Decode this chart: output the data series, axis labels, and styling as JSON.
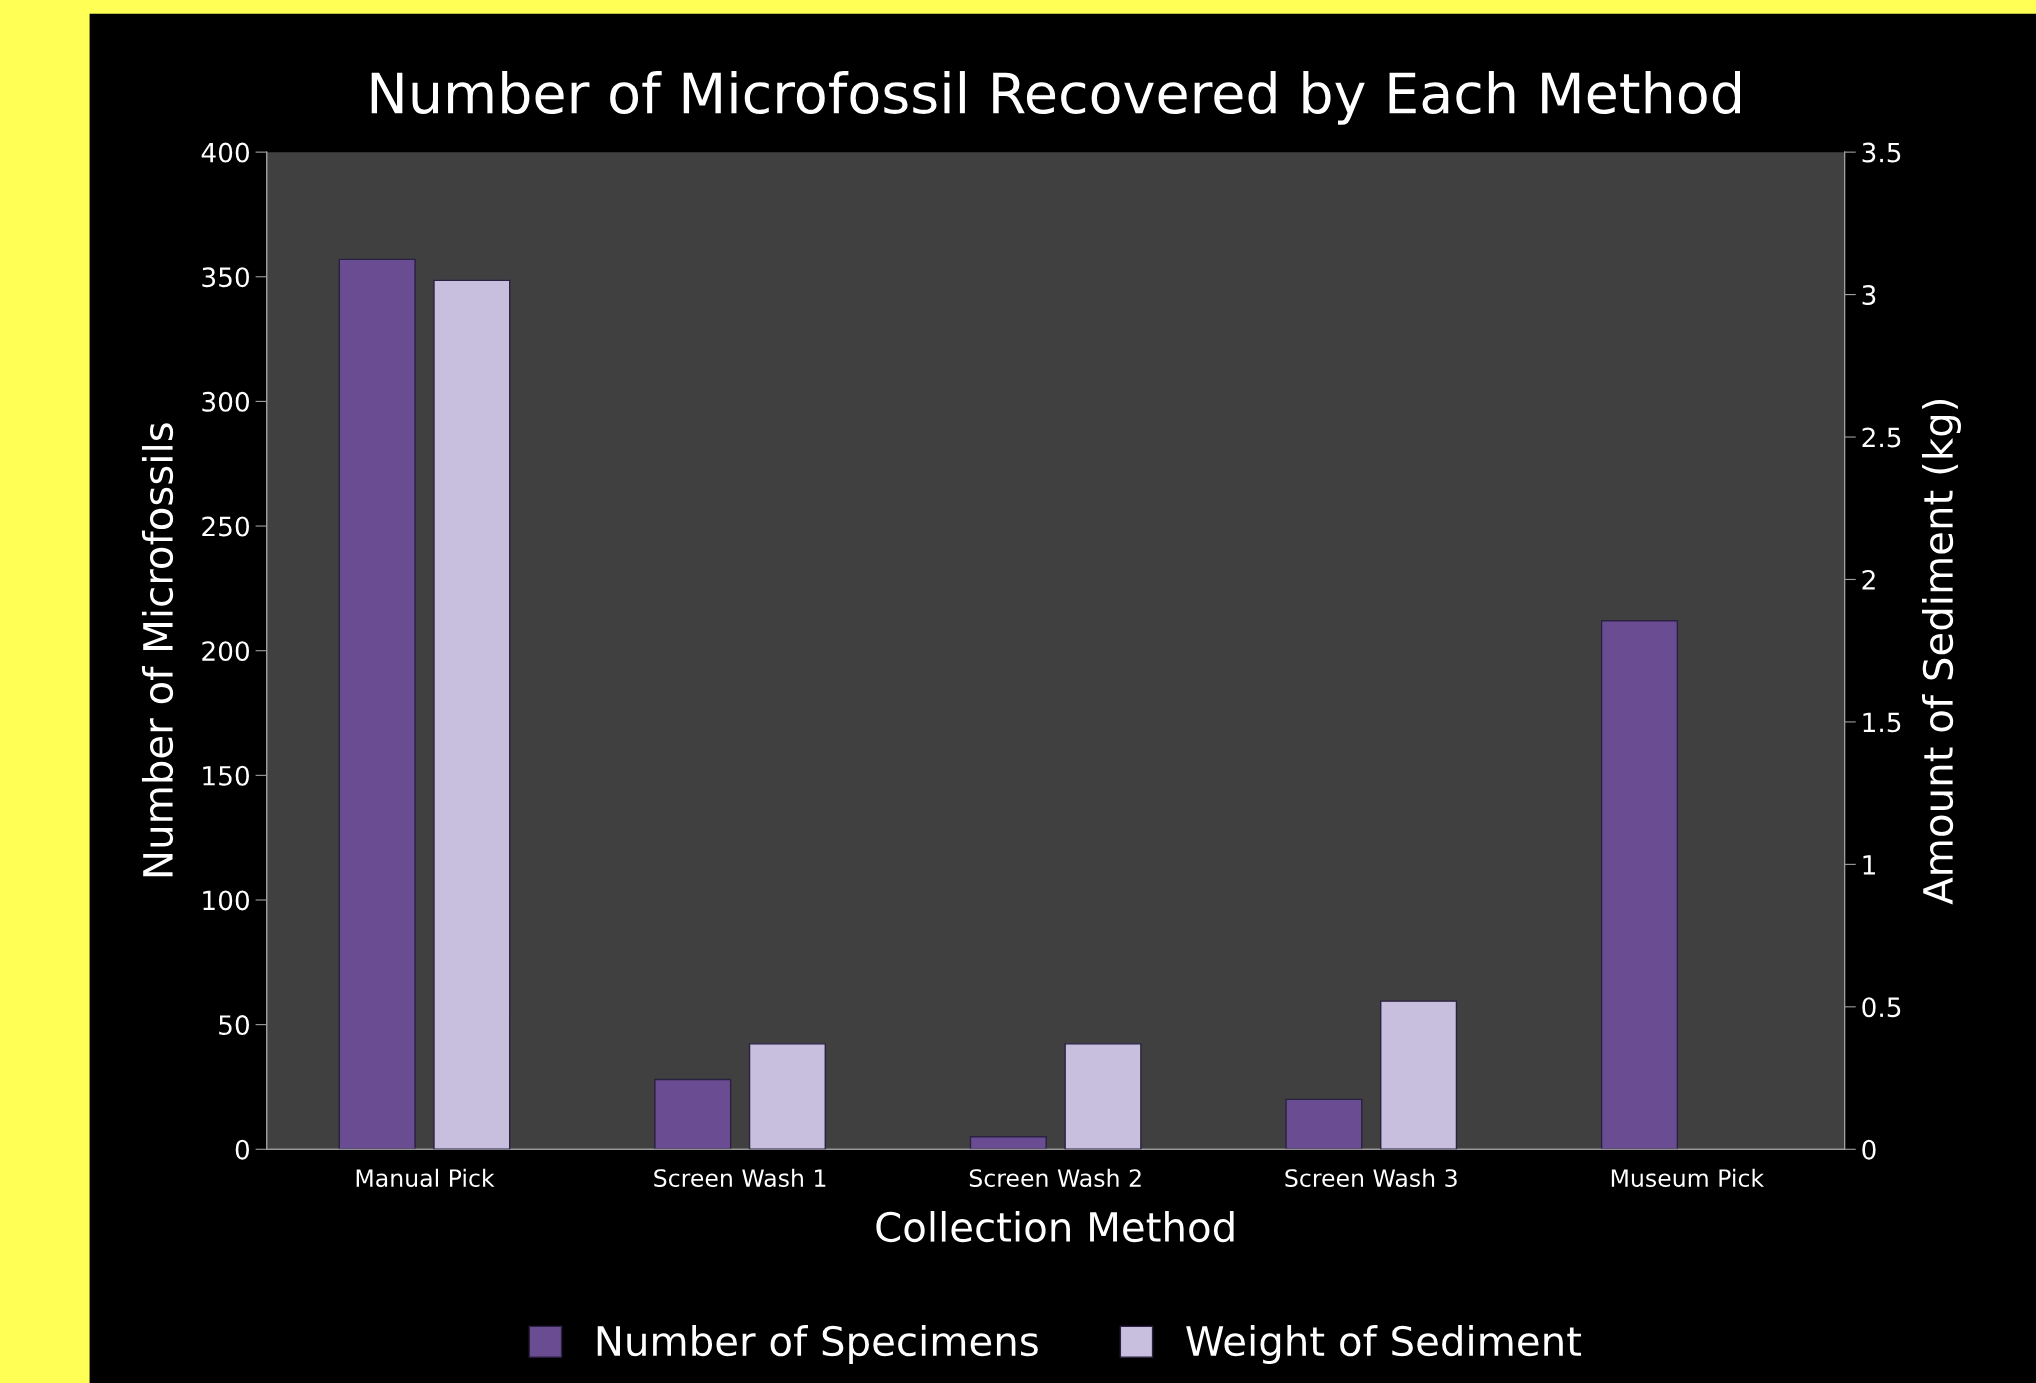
{
  "chart_data": {
    "type": "bar",
    "title": "Number of Microfossil Recovered by Each Method",
    "xlabel": "Collection Method",
    "ylabel": "Number of Microfossils",
    "y2label": "Amount of Sediment (kg)",
    "categories": [
      "Manual Pick",
      "Screen Wash 1",
      "Screen Wash 2",
      "Screen Wash 3",
      "Museum Pick"
    ],
    "series": [
      {
        "name": "Number of Specimens",
        "color": "#6a4c93",
        "values": [
          357,
          28,
          5,
          20,
          212
        ]
      },
      {
        "name": "Weight of Sediment",
        "color": "#c8bedd",
        "axis": "y2",
        "values": [
          3.05,
          0.37,
          0.37,
          0.52,
          null
        ]
      }
    ],
    "ylim": [
      0,
      400
    ],
    "yticks": [
      0,
      50,
      100,
      150,
      200,
      250,
      300,
      350,
      400
    ],
    "y2lim": [
      0,
      3.5
    ],
    "y2ticks": [
      0,
      0.5,
      1,
      1.5,
      2,
      2.5,
      3,
      3.5
    ],
    "grid": false,
    "legend": "bottom"
  }
}
